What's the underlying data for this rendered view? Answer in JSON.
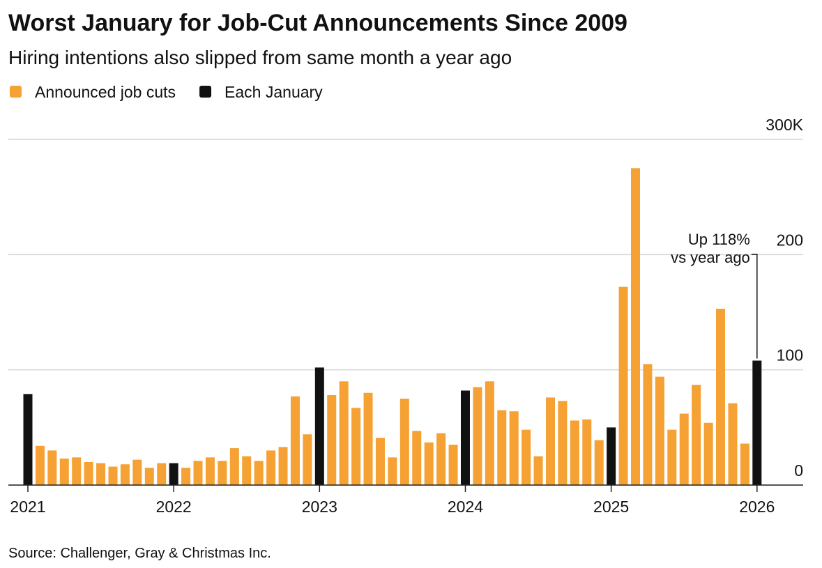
{
  "chart_data": {
    "type": "bar",
    "title": "Worst January for Job-Cut Announcements Since 2009",
    "subtitle": "Hiring intentions also slipped from same month a year ago",
    "source": "Source: Challenger, Gray & Christmas Inc.",
    "annotations": [
      "Up 118%",
      "vs year ago"
    ],
    "categories": [
      "2021",
      null,
      null,
      null,
      null,
      null,
      null,
      null,
      null,
      null,
      null,
      null,
      "2022",
      null,
      null,
      null,
      null,
      null,
      null,
      null,
      null,
      null,
      null,
      null,
      "2023",
      null,
      null,
      null,
      null,
      null,
      null,
      null,
      null,
      null,
      null,
      null,
      "2024",
      null,
      null,
      null,
      null,
      null,
      null,
      null,
      null,
      null,
      null,
      null,
      "2025",
      null,
      null,
      null,
      null,
      null,
      null,
      null,
      null,
      null,
      null,
      null,
      "2026"
    ],
    "series": [
      {
        "name": "Announced job cuts",
        "color": "#f5a133",
        "values": [
          null,
          34,
          30,
          23,
          24,
          20,
          19,
          16,
          18,
          22,
          15,
          19,
          null,
          15,
          21,
          24,
          21,
          32,
          25,
          21,
          30,
          33,
          77,
          44,
          null,
          78,
          90,
          67,
          80,
          41,
          24,
          75,
          47,
          37,
          45,
          35,
          null,
          85,
          90,
          65,
          64,
          48,
          25,
          76,
          73,
          56,
          57,
          39,
          null,
          172,
          275,
          105,
          94,
          48,
          62,
          87,
          54,
          153,
          71,
          36,
          null
        ]
      },
      {
        "name": "Each January",
        "color": "#111111",
        "values": [
          79,
          null,
          null,
          null,
          null,
          null,
          null,
          null,
          null,
          null,
          null,
          null,
          19,
          null,
          null,
          null,
          null,
          null,
          null,
          null,
          null,
          null,
          null,
          null,
          102,
          null,
          null,
          null,
          null,
          null,
          null,
          null,
          null,
          null,
          null,
          null,
          82,
          null,
          null,
          null,
          null,
          null,
          null,
          null,
          null,
          null,
          null,
          null,
          50,
          null,
          null,
          null,
          null,
          null,
          null,
          null,
          null,
          null,
          null,
          null,
          108
        ]
      }
    ],
    "ylim": [
      0,
      300
    ],
    "yticks": [
      0,
      100,
      200,
      {
        "value": 300,
        "label": "300K"
      }
    ],
    "grid": true
  }
}
